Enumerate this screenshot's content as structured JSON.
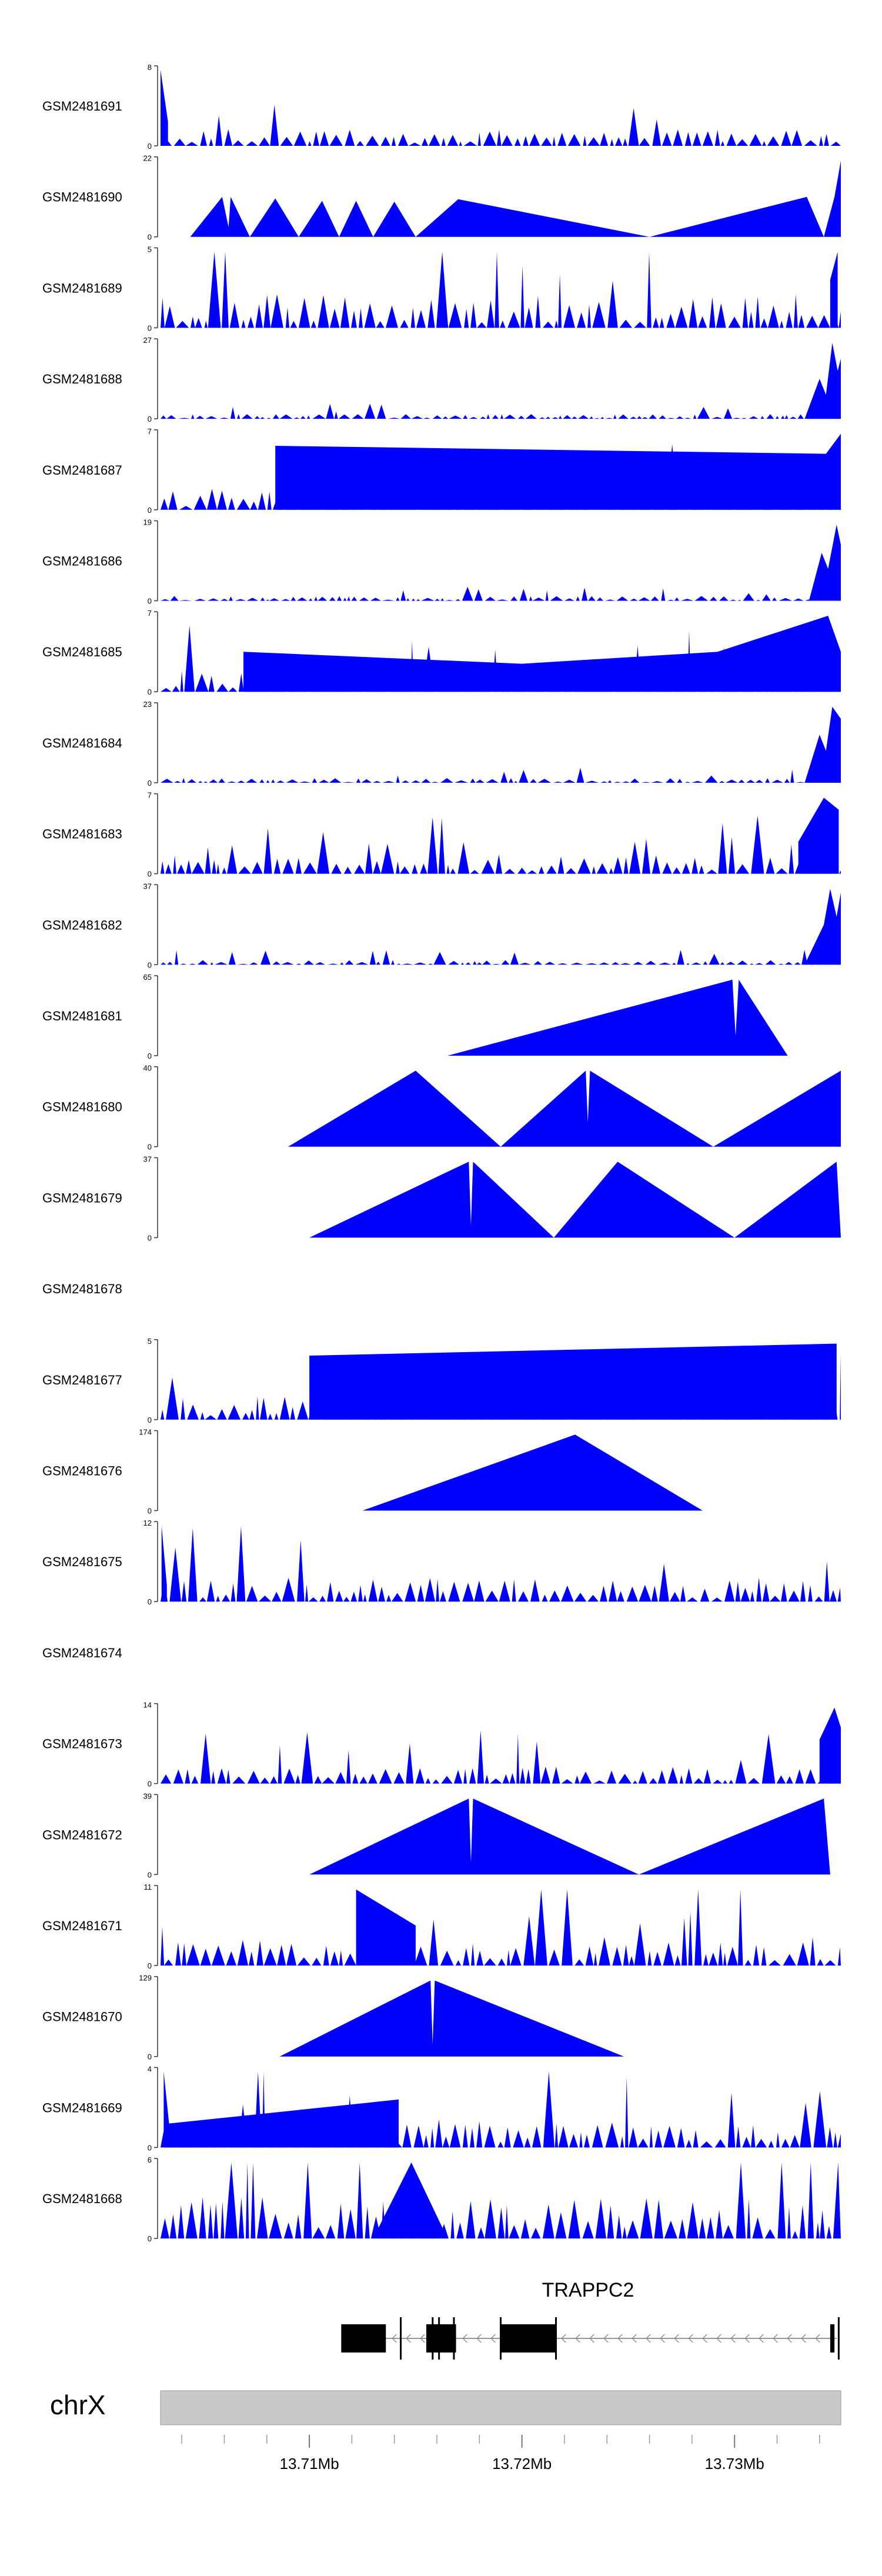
{
  "chart_data": {
    "type": "area",
    "fill_color": "#0000ff",
    "x_range_bp": [
      13703000,
      13735000
    ],
    "tracks": [
      {
        "sample": "GSM2481691",
        "ymax": "8",
        "ymin": "0",
        "pattern": "noise",
        "level": 0.18,
        "seed": 91,
        "points": [
          [
            13703000,
            0.95
          ],
          [
            13703350,
            0.3
          ]
        ]
      },
      {
        "sample": "GSM2481690",
        "ymax": "22",
        "ymin": "0",
        "pattern": "peaks",
        "points": [
          [
            13704400,
            0
          ],
          [
            13705900,
            0.5
          ],
          [
            13706200,
            0.12
          ],
          [
            13706300,
            0.5
          ],
          [
            13707200,
            0
          ],
          [
            13708400,
            0.48
          ],
          [
            13709500,
            0
          ],
          [
            13710600,
            0.45
          ],
          [
            13711400,
            0
          ],
          [
            13712200,
            0.45
          ],
          [
            13713000,
            0
          ],
          [
            13714000,
            0.44
          ],
          [
            13715000,
            0
          ],
          [
            13717000,
            0.47
          ],
          [
            13726000,
            0
          ],
          [
            13733400,
            0.5
          ],
          [
            13734200,
            0
          ],
          [
            13734700,
            0.5
          ],
          [
            13735000,
            0.95
          ]
        ]
      },
      {
        "sample": "GSM2481689",
        "ymax": "5",
        "ymin": "0",
        "pattern": "noise",
        "level": 0.35,
        "seed": 89,
        "points": [
          [
            13734500,
            0.6
          ],
          [
            13734850,
            0.95
          ]
        ]
      },
      {
        "sample": "GSM2481688",
        "ymax": "27",
        "ymin": "0",
        "pattern": "noise",
        "level": 0.05,
        "seed": 88,
        "points": [
          [
            13733300,
            0
          ],
          [
            13734000,
            0.5
          ],
          [
            13734300,
            0.3
          ],
          [
            13734600,
            0.95
          ],
          [
            13734850,
            0.6
          ],
          [
            13735000,
            0.75
          ]
        ]
      },
      {
        "sample": "GSM2481687",
        "ymax": "7",
        "ymin": "0",
        "pattern": "noise",
        "level": 0.22,
        "seed": 87,
        "points": [
          [
            13708400,
            0.8
          ],
          [
            13734300,
            0.7
          ],
          [
            13735000,
            0.95
          ]
        ]
      },
      {
        "sample": "GSM2481686",
        "ymax": "19",
        "ymin": "0",
        "pattern": "noise",
        "level": 0.05,
        "seed": 86,
        "points": [
          [
            13733500,
            0
          ],
          [
            13734100,
            0.6
          ],
          [
            13734400,
            0.4
          ],
          [
            13734800,
            0.95
          ],
          [
            13735000,
            0.7
          ]
        ]
      },
      {
        "sample": "GSM2481685",
        "ymax": "7",
        "ymin": "0",
        "pattern": "noise",
        "level": 0.22,
        "seed": 85,
        "points": [
          [
            13706900,
            0.5
          ],
          [
            13720000,
            0.35
          ],
          [
            13729200,
            0.5
          ],
          [
            13734400,
            0.95
          ],
          [
            13735000,
            0.5
          ]
        ]
      },
      {
        "sample": "GSM2481684",
        "ymax": "23",
        "ymin": "0",
        "pattern": "noise",
        "level": 0.05,
        "seed": 84,
        "points": [
          [
            13733300,
            0
          ],
          [
            13734000,
            0.6
          ],
          [
            13734300,
            0.4
          ],
          [
            13734600,
            0.95
          ],
          [
            13735000,
            0.8
          ]
        ]
      },
      {
        "sample": "GSM2481683",
        "ymax": "7",
        "ymin": "0",
        "pattern": "noise",
        "level": 0.2,
        "seed": 83,
        "points": [
          [
            13733000,
            0.4
          ],
          [
            13734200,
            0.95
          ],
          [
            13734900,
            0.8
          ]
        ]
      },
      {
        "sample": "GSM2481682",
        "ymax": "37",
        "ymin": "0",
        "pattern": "noise",
        "level": 0.05,
        "seed": 82,
        "points": [
          [
            13733300,
            0
          ],
          [
            13734200,
            0.5
          ],
          [
            13734500,
            0.95
          ],
          [
            13734800,
            0.6
          ],
          [
            13735000,
            0.9
          ]
        ]
      },
      {
        "sample": "GSM2481681",
        "ymax": "65",
        "ymin": "0",
        "pattern": "peaks",
        "points": [
          [
            13716500,
            0
          ],
          [
            13729900,
            0.95
          ],
          [
            13730050,
            0.25
          ],
          [
            13730200,
            0.95
          ],
          [
            13732500,
            0
          ]
        ]
      },
      {
        "sample": "GSM2481680",
        "ymax": "40",
        "ymin": "0",
        "pattern": "peaks",
        "points": [
          [
            13709000,
            0
          ],
          [
            13715000,
            0.95
          ],
          [
            13719000,
            0
          ],
          [
            13723000,
            0.95
          ],
          [
            13723100,
            0.3
          ],
          [
            13723200,
            0.95
          ],
          [
            13729000,
            0
          ],
          [
            13735000,
            0.95
          ]
        ]
      },
      {
        "sample": "GSM2481679",
        "ymax": "37",
        "ymin": "0",
        "pattern": "peaks",
        "points": [
          [
            13710000,
            0
          ],
          [
            13717500,
            0.95
          ],
          [
            13717600,
            0.15
          ],
          [
            13717700,
            0.95
          ],
          [
            13721500,
            0
          ],
          [
            13724500,
            0.95
          ],
          [
            13730000,
            0
          ],
          [
            13734800,
            0.95
          ],
          [
            13735000,
            0
          ]
        ]
      },
      {
        "sample": "GSM2481678",
        "pattern": "empty",
        "points": []
      },
      {
        "sample": "GSM2481677",
        "ymax": "5",
        "ymin": "0",
        "pattern": "noise",
        "level": 0.25,
        "seed": 77,
        "points": [
          [
            13710000,
            0.8
          ],
          [
            13734800,
            0.95
          ]
        ]
      },
      {
        "sample": "GSM2481676",
        "ymax": "174",
        "ymin": "0",
        "pattern": "peaks",
        "points": [
          [
            13712500,
            0
          ],
          [
            13722500,
            0.95
          ],
          [
            13728500,
            0
          ]
        ]
      },
      {
        "sample": "GSM2481675",
        "ymax": "12",
        "ymin": "0",
        "pattern": "noise",
        "level": 0.25,
        "seed": 75,
        "points": [
          [
            13703050,
            0.95
          ],
          [
            13703300,
            0.2
          ]
        ]
      },
      {
        "sample": "GSM2481674",
        "pattern": "empty",
        "points": []
      },
      {
        "sample": "GSM2481673",
        "ymax": "14",
        "ymin": "0",
        "pattern": "noise",
        "level": 0.18,
        "seed": 73,
        "points": [
          [
            13734000,
            0.55
          ],
          [
            13734700,
            0.95
          ],
          [
            13735000,
            0.7
          ]
        ]
      },
      {
        "sample": "GSM2481672",
        "ymax": "39",
        "ymin": "0",
        "pattern": "peaks",
        "points": [
          [
            13710000,
            0
          ],
          [
            13717500,
            0.95
          ],
          [
            13717600,
            0.15
          ],
          [
            13717700,
            0.95
          ],
          [
            13725500,
            0
          ],
          [
            13734200,
            0.95
          ],
          [
            13734500,
            0
          ]
        ]
      },
      {
        "sample": "GSM2481671",
        "ymax": "11",
        "ymin": "0",
        "pattern": "noise",
        "level": 0.3,
        "seed": 71,
        "points": [
          [
            13712200,
            0.95
          ],
          [
            13715000,
            0.5
          ]
        ]
      },
      {
        "sample": "GSM2481670",
        "ymax": "129",
        "ymin": "0",
        "pattern": "peaks",
        "points": [
          [
            13708600,
            0
          ],
          [
            13715700,
            0.95
          ],
          [
            13715800,
            0.15
          ],
          [
            13715900,
            0.95
          ],
          [
            13724800,
            0
          ]
        ]
      },
      {
        "sample": "GSM2481669",
        "ymax": "4",
        "ymin": "0",
        "pattern": "noise",
        "level": 0.3,
        "seed": 69,
        "points": [
          [
            13703150,
            0.95
          ],
          [
            13703400,
            0.3
          ],
          [
            13714200,
            0.6
          ]
        ]
      },
      {
        "sample": "GSM2481668",
        "ymax": "6",
        "ymin": "0",
        "pattern": "noise",
        "level": 0.45,
        "seed": 68,
        "points": [
          [
            13713000,
            0
          ],
          [
            13714800,
            0.95
          ],
          [
            13716500,
            0
          ]
        ]
      }
    ],
    "gene": {
      "name": "TRAPPC2",
      "strand": "-",
      "line_start": 13711500,
      "line_end": 13734800,
      "exons": [
        [
          13711500,
          13713600
        ],
        [
          13715500,
          13716900
        ],
        [
          13719000,
          13721600
        ],
        [
          13734500,
          13734700
        ]
      ],
      "exon_ticks": [
        13714300,
        13715800,
        13716100,
        13716800,
        13719000,
        13721600,
        13734900
      ]
    },
    "chromosome": "chrX",
    "ticks": [
      {
        "pos": 13710000,
        "label": "13.71Mb"
      },
      {
        "pos": 13720000,
        "label": "13.72Mb"
      },
      {
        "pos": 13730000,
        "label": "13.73Mb"
      }
    ],
    "minor_tick_step": 2000
  }
}
